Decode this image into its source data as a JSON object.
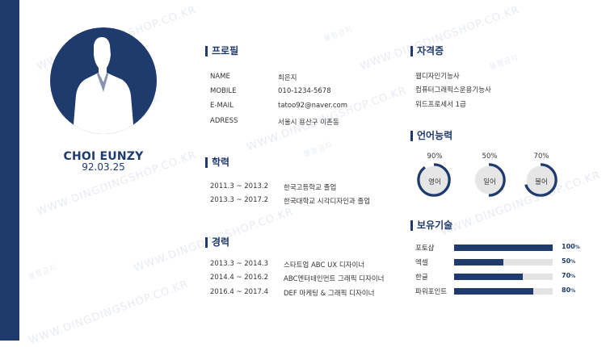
{
  "profile": {
    "name": "CHOI EUNZY",
    "dob": "92.03.25",
    "title": "프로필",
    "fields": [
      {
        "label": "NAME",
        "value": "최은지"
      },
      {
        "label": "MOBILE",
        "value": "010-1234-5678"
      },
      {
        "label": "E-MAIL",
        "value": "tatoo92@naver.com"
      },
      {
        "label": "ADRESS",
        "value": "서울시 용산구 이촌동"
      }
    ]
  },
  "education": {
    "title": "학력",
    "items": [
      {
        "period": "2011.3 ~ 2013.2",
        "desc": "한국고등학교 졸업"
      },
      {
        "period": "2013.3 ~ 2017.2",
        "desc": "한국대학교 시각디자인과 졸업"
      }
    ]
  },
  "career": {
    "title": "경력",
    "items": [
      {
        "period": "2013.3 ~ 2014.3",
        "desc": "스타트업 ABC UX 디자이너"
      },
      {
        "period": "2014.4 ~ 2016.2",
        "desc": "ABC엔터테인먼트 그래픽 디자이너"
      },
      {
        "period": "2016.4 ~ 2017.4",
        "desc": "DEF 마케팅 & 그래픽 디자이너"
      }
    ]
  },
  "certifications": {
    "title": "자격증",
    "items": [
      "웹디자인기능사",
      "컴퓨터그래픽스운용기능사",
      "워드프로세서 1급"
    ]
  },
  "languages": {
    "title": "언어능력",
    "items": [
      {
        "name": "영어",
        "percent": 90,
        "percent_label": "90%"
      },
      {
        "name": "일어",
        "percent": 50,
        "percent_label": "50%"
      },
      {
        "name": "불어",
        "percent": 70,
        "percent_label": "70%"
      }
    ]
  },
  "skills": {
    "title": "보유기술",
    "items": [
      {
        "name": "포토샵",
        "percent": 100,
        "value": "100",
        "unit": "%"
      },
      {
        "name": "엑셀",
        "percent": 50,
        "value": "50",
        "unit": "%"
      },
      {
        "name": "한글",
        "percent": 70,
        "value": "70",
        "unit": "%"
      },
      {
        "name": "파워포인트",
        "percent": 80,
        "value": "80",
        "unit": "%"
      }
    ]
  },
  "watermark": {
    "main": "WWW.DINGDINGSHOP.CO.KR",
    "sub": "불펌금지"
  },
  "colors": {
    "accent": "#1f3a6d",
    "track": "#e3e3e3",
    "ring_inner": "#e6e6e6"
  }
}
